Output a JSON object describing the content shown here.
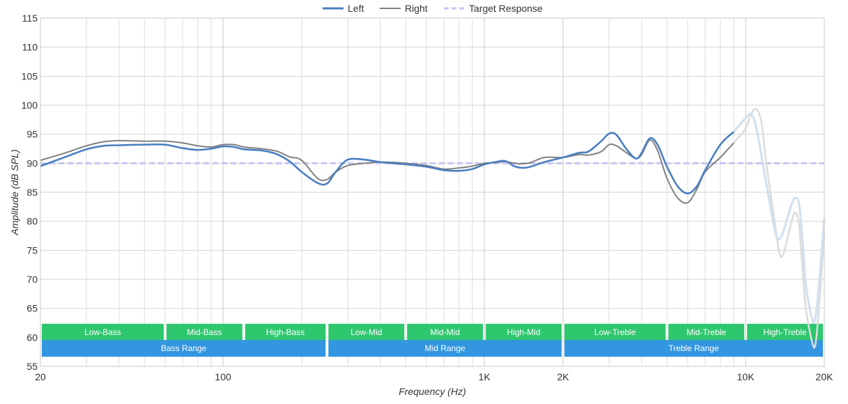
{
  "chart_data": {
    "type": "line",
    "title": "",
    "xlabel": "Frequency (Hz)",
    "ylabel": "Amplitude (dB SPL)",
    "x_scale": "log",
    "xlim": [
      20,
      20000
    ],
    "ylim": [
      55,
      115
    ],
    "y_ticks": [
      55,
      60,
      65,
      70,
      75,
      80,
      85,
      90,
      95,
      100,
      105,
      110,
      115
    ],
    "x_ticks": [
      {
        "value": 20,
        "label": "20"
      },
      {
        "value": 100,
        "label": "100"
      },
      {
        "value": 1000,
        "label": "1K"
      },
      {
        "value": 2000,
        "label": "2K"
      },
      {
        "value": 10000,
        "label": "10K"
      },
      {
        "value": 20000,
        "label": "20K"
      }
    ],
    "grid": true,
    "legend_position": "top-center",
    "series": [
      {
        "name": "Left",
        "color": "#4a7fc1",
        "faded_color": "#d3e0ef",
        "fade_above": 9000,
        "points": [
          [
            20,
            89.5
          ],
          [
            25,
            91.1
          ],
          [
            30,
            92.4
          ],
          [
            35,
            93.0
          ],
          [
            40,
            93.1
          ],
          [
            50,
            93.2
          ],
          [
            60,
            93.2
          ],
          [
            70,
            92.6
          ],
          [
            80,
            92.3
          ],
          [
            90,
            92.5
          ],
          [
            100,
            92.9
          ],
          [
            110,
            92.8
          ],
          [
            120,
            92.4
          ],
          [
            140,
            92.2
          ],
          [
            160,
            91.6
          ],
          [
            180,
            90.3
          ],
          [
            200,
            88.5
          ],
          [
            230,
            86.6
          ],
          [
            250,
            86.5
          ],
          [
            270,
            88.5
          ],
          [
            300,
            90.6
          ],
          [
            350,
            90.6
          ],
          [
            400,
            90.2
          ],
          [
            500,
            89.8
          ],
          [
            600,
            89.4
          ],
          [
            700,
            88.8
          ],
          [
            800,
            88.7
          ],
          [
            900,
            89.0
          ],
          [
            1000,
            89.8
          ],
          [
            1100,
            90.2
          ],
          [
            1200,
            90.4
          ],
          [
            1300,
            89.5
          ],
          [
            1400,
            89.2
          ],
          [
            1500,
            89.4
          ],
          [
            1700,
            90.2
          ],
          [
            2000,
            91.0
          ],
          [
            2300,
            91.8
          ],
          [
            2500,
            92.0
          ],
          [
            2800,
            93.8
          ],
          [
            3000,
            95.1
          ],
          [
            3200,
            94.9
          ],
          [
            3500,
            92.4
          ],
          [
            3800,
            90.8
          ],
          [
            4000,
            91.8
          ],
          [
            4300,
            94.3
          ],
          [
            4600,
            93.2
          ],
          [
            5000,
            89.4
          ],
          [
            5500,
            86.0
          ],
          [
            6000,
            84.8
          ],
          [
            6500,
            86.0
          ],
          [
            7000,
            88.8
          ],
          [
            8000,
            93.2
          ],
          [
            9000,
            95.4
          ],
          [
            10000,
            97.8
          ],
          [
            10500,
            98.4
          ],
          [
            11000,
            96.0
          ],
          [
            12000,
            86.5
          ],
          [
            13000,
            78.0
          ],
          [
            13500,
            77.0
          ],
          [
            14000,
            78.5
          ],
          [
            15000,
            83.0
          ],
          [
            15500,
            84.0
          ],
          [
            16000,
            83.0
          ],
          [
            16500,
            77.0
          ],
          [
            17000,
            69.0
          ],
          [
            18000,
            63.0
          ],
          [
            18500,
            63.5
          ],
          [
            19000,
            68.0
          ],
          [
            20000,
            80.5
          ]
        ]
      },
      {
        "name": "Right",
        "color": "#808080",
        "faded_color": "#dcdcdc",
        "fade_above": 9000,
        "points": [
          [
            20,
            90.5
          ],
          [
            25,
            91.8
          ],
          [
            30,
            93.0
          ],
          [
            35,
            93.7
          ],
          [
            40,
            93.9
          ],
          [
            50,
            93.8
          ],
          [
            60,
            93.8
          ],
          [
            70,
            93.5
          ],
          [
            80,
            93.0
          ],
          [
            90,
            92.8
          ],
          [
            100,
            93.2
          ],
          [
            110,
            93.2
          ],
          [
            120,
            92.8
          ],
          [
            140,
            92.5
          ],
          [
            160,
            92.1
          ],
          [
            180,
            91.1
          ],
          [
            200,
            90.5
          ],
          [
            230,
            87.4
          ],
          [
            250,
            87.2
          ],
          [
            270,
            88.5
          ],
          [
            300,
            89.6
          ],
          [
            350,
            90.0
          ],
          [
            400,
            90.2
          ],
          [
            500,
            90.0
          ],
          [
            600,
            89.6
          ],
          [
            700,
            89.0
          ],
          [
            800,
            89.2
          ],
          [
            900,
            89.5
          ],
          [
            1000,
            90.0
          ],
          [
            1100,
            90.1
          ],
          [
            1200,
            90.3
          ],
          [
            1300,
            90.0
          ],
          [
            1400,
            89.9
          ],
          [
            1500,
            90.1
          ],
          [
            1700,
            91.0
          ],
          [
            2000,
            91.0
          ],
          [
            2300,
            91.5
          ],
          [
            2500,
            91.4
          ],
          [
            2800,
            92.0
          ],
          [
            3000,
            93.2
          ],
          [
            3200,
            93.0
          ],
          [
            3500,
            91.8
          ],
          [
            3800,
            90.8
          ],
          [
            4000,
            91.5
          ],
          [
            4300,
            94.0
          ],
          [
            4600,
            92.2
          ],
          [
            5000,
            87.4
          ],
          [
            5500,
            84.0
          ],
          [
            6000,
            83.2
          ],
          [
            6500,
            85.5
          ],
          [
            7000,
            88.5
          ],
          [
            8000,
            91.0
          ],
          [
            9000,
            93.5
          ],
          [
            10000,
            96.0
          ],
          [
            10500,
            98.5
          ],
          [
            11000,
            99.3
          ],
          [
            11500,
            97.0
          ],
          [
            12000,
            90.0
          ],
          [
            13000,
            79.0
          ],
          [
            13500,
            74.3
          ],
          [
            14000,
            74.6
          ],
          [
            15000,
            80.0
          ],
          [
            15500,
            81.5
          ],
          [
            16000,
            79.5
          ],
          [
            16500,
            72.0
          ],
          [
            17000,
            65.0
          ],
          [
            18000,
            59.0
          ],
          [
            18500,
            58.8
          ],
          [
            19000,
            64.0
          ],
          [
            20000,
            78.0
          ]
        ]
      },
      {
        "name": "Target Response",
        "color": "#c4c6f5",
        "dashed": true,
        "points": [
          [
            20,
            90
          ],
          [
            20000,
            90
          ]
        ]
      }
    ],
    "ranges": [
      {
        "label": "Low-Bass",
        "from": 20,
        "to": 60,
        "color": "#2fc76e",
        "row": 1
      },
      {
        "label": "Mid-Bass",
        "from": 60,
        "to": 120,
        "color": "#2fc76e",
        "row": 1
      },
      {
        "label": "High-Bass",
        "from": 120,
        "to": 250,
        "color": "#2fc76e",
        "row": 1
      },
      {
        "label": "Low-Mid",
        "from": 250,
        "to": 500,
        "color": "#2fc76e",
        "row": 1
      },
      {
        "label": "Mid-Mid",
        "from": 500,
        "to": 1000,
        "color": "#2fc76e",
        "row": 1
      },
      {
        "label": "High-Mid",
        "from": 1000,
        "to": 2000,
        "color": "#2fc76e",
        "row": 1
      },
      {
        "label": "Low-Treble",
        "from": 2000,
        "to": 5000,
        "color": "#2fc76e",
        "row": 1
      },
      {
        "label": "Mid-Treble",
        "from": 5000,
        "to": 10000,
        "color": "#2fc76e",
        "row": 1
      },
      {
        "label": "High-Treble",
        "from": 10000,
        "to": 20000,
        "color": "#2fc76e",
        "row": 1
      },
      {
        "label": "Bass Range",
        "from": 20,
        "to": 250,
        "color": "#3296e0",
        "row": 2
      },
      {
        "label": "Mid Range",
        "from": 250,
        "to": 2000,
        "color": "#3296e0",
        "row": 2
      },
      {
        "label": "Treble Range",
        "from": 2000,
        "to": 20000,
        "color": "#3296e0",
        "row": 2
      }
    ]
  }
}
